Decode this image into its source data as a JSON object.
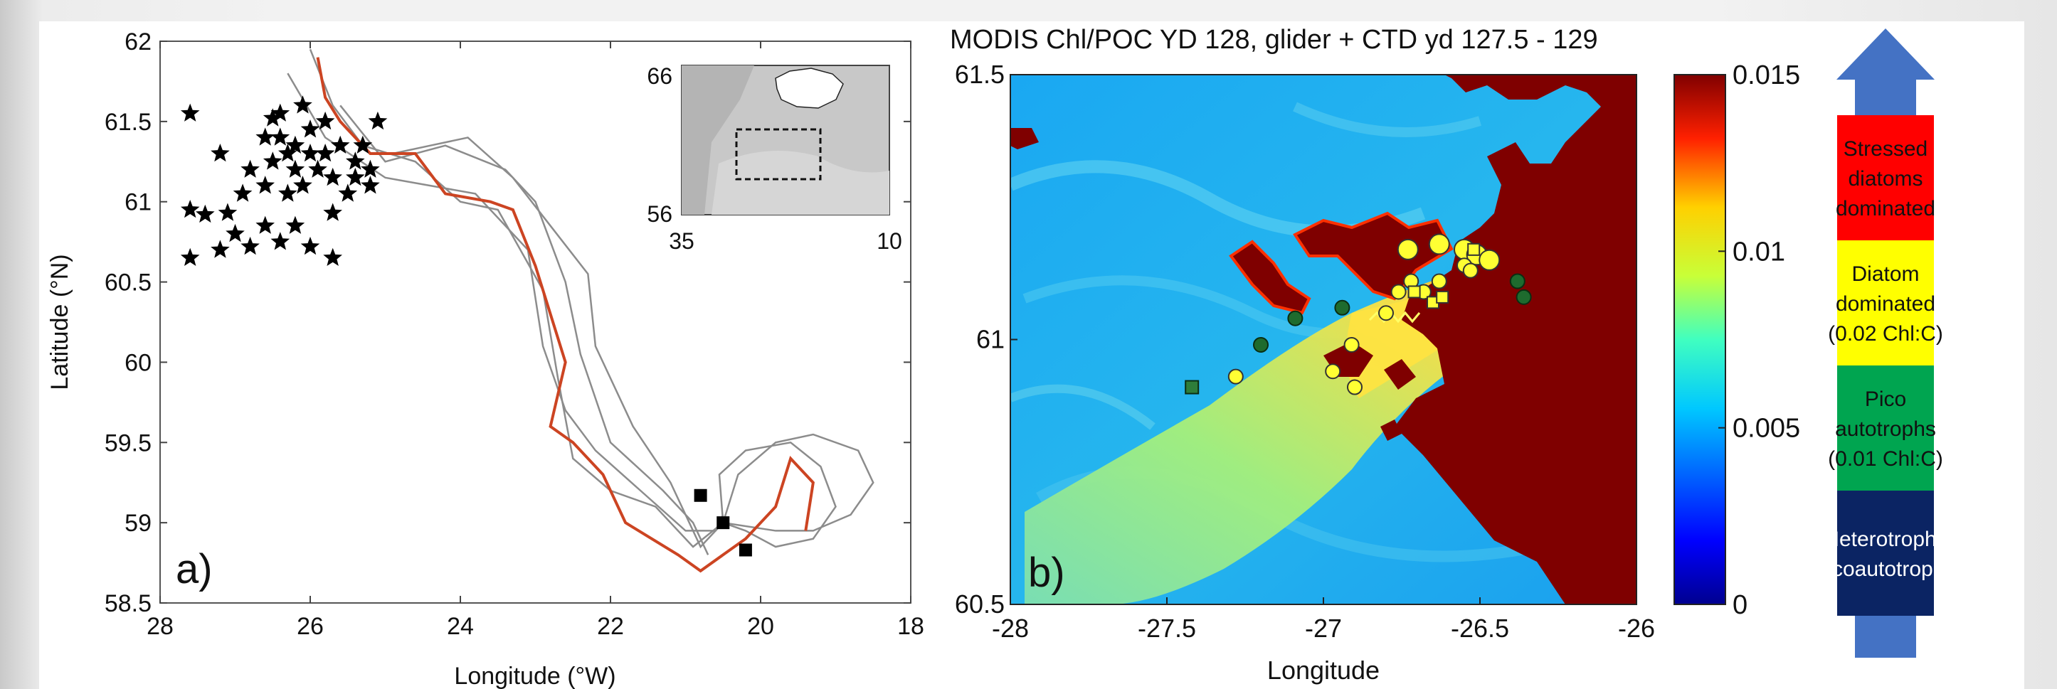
{
  "colors": {
    "track": "#8c8c8c",
    "mean_track": "#cc4422",
    "marker": "#000000",
    "bloom": "#7f0000",
    "ocean": "#22aef0",
    "legend_red": "#ff0000",
    "legend_yellow": "#ffff00",
    "legend_green": "#00a550",
    "legend_navy": "#0b2463",
    "arrow": "#4472c4"
  },
  "chart_data": [
    {
      "type": "line",
      "panel_label": "a)",
      "xlabel": "Longitude (°W)",
      "ylabel": "Latitude (°N)",
      "xlim": [
        28,
        18
      ],
      "ylim": [
        58.5,
        62
      ],
      "x_ticks": [
        "28",
        "26",
        "24",
        "22",
        "20",
        "18"
      ],
      "y_ticks": [
        "58.5",
        "59",
        "59.5",
        "60",
        "60.5",
        "61",
        "61.5",
        "62"
      ],
      "mean_track": [
        [
          25.9,
          61.9
        ],
        [
          25.8,
          61.65
        ],
        [
          25.6,
          61.5
        ],
        [
          25.2,
          61.3
        ],
        [
          24.6,
          61.3
        ],
        [
          24.2,
          61.05
        ],
        [
          23.6,
          61.0
        ],
        [
          23.3,
          60.95
        ],
        [
          23.0,
          60.6
        ],
        [
          22.6,
          60.0
        ],
        [
          22.8,
          59.6
        ],
        [
          22.5,
          59.5
        ],
        [
          22.1,
          59.3
        ],
        [
          21.8,
          59.0
        ],
        [
          21.1,
          58.8
        ],
        [
          20.8,
          58.7
        ],
        [
          20.2,
          58.9
        ],
        [
          19.8,
          59.1
        ],
        [
          19.6,
          59.4
        ],
        [
          19.3,
          59.25
        ],
        [
          19.4,
          58.95
        ]
      ],
      "glider_tracks": [
        [
          [
            26.0,
            61.95
          ],
          [
            25.7,
            61.6
          ],
          [
            25.3,
            61.35
          ],
          [
            24.6,
            61.25
          ],
          [
            24.0,
            61.0
          ],
          [
            23.5,
            60.95
          ],
          [
            22.9,
            60.45
          ],
          [
            22.7,
            59.9
          ],
          [
            22.5,
            59.4
          ],
          [
            22.0,
            59.2
          ],
          [
            21.4,
            59.1
          ],
          [
            20.9,
            58.85
          ],
          [
            20.5,
            59.0
          ]
        ],
        [
          [
            26.3,
            61.8
          ],
          [
            25.8,
            61.4
          ],
          [
            25.0,
            61.15
          ],
          [
            24.4,
            61.1
          ],
          [
            23.8,
            61.05
          ],
          [
            23.1,
            60.7
          ],
          [
            22.9,
            60.1
          ],
          [
            22.6,
            59.7
          ],
          [
            22.2,
            59.45
          ],
          [
            21.6,
            59.2
          ],
          [
            21.0,
            58.95
          ],
          [
            20.6,
            58.95
          ],
          [
            20.5,
            59.05
          ]
        ],
        [
          [
            25.6,
            61.6
          ],
          [
            25.0,
            61.25
          ],
          [
            24.2,
            61.35
          ],
          [
            23.4,
            61.2
          ],
          [
            23.0,
            61.0
          ],
          [
            22.6,
            60.5
          ],
          [
            22.4,
            60.05
          ],
          [
            22.0,
            59.5
          ],
          [
            21.3,
            59.2
          ],
          [
            20.9,
            59.0
          ],
          [
            20.7,
            58.8
          ]
        ],
        [
          [
            24.9,
            61.3
          ],
          [
            24.4,
            61.35
          ],
          [
            23.9,
            61.4
          ],
          [
            23.3,
            61.15
          ],
          [
            22.8,
            60.85
          ],
          [
            22.3,
            60.55
          ],
          [
            22.2,
            60.1
          ],
          [
            21.7,
            59.6
          ],
          [
            21.2,
            59.25
          ],
          [
            20.8,
            58.85
          ],
          [
            20.5,
            59.0
          ]
        ],
        [
          [
            20.5,
            59.0
          ],
          [
            20.55,
            59.3
          ],
          [
            20.2,
            59.45
          ],
          [
            19.6,
            59.5
          ],
          [
            19.2,
            59.35
          ],
          [
            19.0,
            59.1
          ],
          [
            19.3,
            58.9
          ],
          [
            19.8,
            58.85
          ],
          [
            20.2,
            58.95
          ],
          [
            20.5,
            59.0
          ]
        ],
        [
          [
            20.5,
            59.0
          ],
          [
            20.3,
            59.3
          ],
          [
            19.8,
            59.5
          ],
          [
            19.3,
            59.55
          ],
          [
            18.7,
            59.45
          ],
          [
            18.5,
            59.25
          ],
          [
            18.8,
            59.05
          ],
          [
            19.3,
            58.95
          ],
          [
            19.8,
            58.95
          ],
          [
            20.5,
            59.0
          ]
        ]
      ],
      "star_points": [
        [
          27.6,
          61.55
        ],
        [
          27.6,
          60.95
        ],
        [
          27.4,
          60.92
        ],
        [
          27.1,
          60.93
        ],
        [
          27.2,
          61.3
        ],
        [
          27.0,
          60.8
        ],
        [
          26.8,
          60.72
        ],
        [
          27.2,
          60.7
        ],
        [
          27.6,
          60.65
        ],
        [
          26.6,
          60.85
        ],
        [
          26.4,
          60.75
        ],
        [
          26.2,
          60.85
        ],
        [
          26.0,
          60.72
        ],
        [
          25.7,
          60.93
        ],
        [
          25.7,
          60.65
        ],
        [
          26.5,
          61.52
        ],
        [
          26.4,
          61.4
        ],
        [
          26.3,
          61.3
        ],
        [
          26.1,
          61.6
        ],
        [
          26.0,
          61.45
        ],
        [
          25.8,
          61.5
        ],
        [
          25.6,
          61.35
        ],
        [
          25.4,
          61.25
        ],
        [
          25.2,
          61.1
        ],
        [
          25.4,
          61.15
        ],
        [
          25.5,
          61.05
        ],
        [
          25.7,
          61.15
        ],
        [
          25.9,
          61.2
        ],
        [
          26.1,
          61.1
        ],
        [
          26.3,
          61.05
        ],
        [
          26.6,
          61.1
        ],
        [
          26.8,
          61.2
        ],
        [
          26.9,
          61.05
        ],
        [
          26.5,
          61.25
        ],
        [
          26.6,
          61.4
        ],
        [
          26.2,
          61.35
        ],
        [
          26.0,
          61.3
        ],
        [
          25.8,
          61.3
        ],
        [
          26.4,
          61.55
        ],
        [
          26.2,
          61.2
        ],
        [
          25.1,
          61.5
        ],
        [
          25.3,
          61.35
        ],
        [
          25.2,
          61.2
        ]
      ],
      "square_points": [
        [
          20.8,
          59.17
        ],
        [
          20.5,
          59.0
        ],
        [
          20.2,
          58.83
        ]
      ]
    },
    {
      "type": "table",
      "inset_x_ticks": [
        "35",
        "10"
      ],
      "inset_y_ticks": [
        "66",
        "56"
      ]
    },
    {
      "type": "heatmap",
      "panel_label": "b)",
      "title": "MODIS Chl/POC YD 128, glider + CTD yd 127.5 - 129",
      "xlabel": "Longitude",
      "xlim": [
        -28,
        -26
      ],
      "ylim": [
        60.5,
        61.5
      ],
      "x_ticks": [
        "-28",
        "-27.5",
        "-27",
        "-26.5",
        "-26"
      ],
      "y_ticks": [
        "60.5",
        "61",
        "61.5"
      ],
      "colorbar_range": [
        0,
        0.015
      ],
      "colorbar_ticks": [
        "0",
        "0.005",
        "0.01",
        "0.015"
      ],
      "yellow_circles": [
        [
          -26.73,
          61.17
        ],
        [
          -26.63,
          61.18
        ],
        [
          -26.55,
          61.17
        ],
        [
          -26.51,
          61.16
        ],
        [
          -26.47,
          61.15
        ],
        [
          -26.72,
          61.11
        ],
        [
          -26.76,
          61.09
        ],
        [
          -26.68,
          61.09
        ],
        [
          -26.63,
          61.11
        ],
        [
          -26.55,
          61.14
        ],
        [
          -26.53,
          61.13
        ],
        [
          -26.8,
          61.05
        ],
        [
          -26.91,
          60.99
        ],
        [
          -26.97,
          60.94
        ],
        [
          -26.9,
          60.91
        ],
        [
          -27.28,
          60.93
        ]
      ],
      "yellow_squares": [
        [
          -26.52,
          61.17
        ],
        [
          -26.71,
          61.09
        ],
        [
          -26.65,
          61.07
        ],
        [
          -26.62,
          61.08
        ]
      ],
      "green_circles": [
        [
          -27.2,
          60.99
        ],
        [
          -27.09,
          61.04
        ],
        [
          -26.94,
          61.06
        ],
        [
          -26.38,
          61.11
        ],
        [
          -26.36,
          61.08
        ]
      ],
      "green_squares": [
        [
          -27.42,
          60.91
        ]
      ]
    },
    {
      "type": "table",
      "categories": [
        {
          "label": "Stressed diatoms dominated"
        },
        {
          "label": "Diatom dominated (0.02 Chl:C)"
        },
        {
          "label": "Pico autotrophs (0.01 Chl:C)"
        },
        {
          "label": "Heterotrophs picoautotrophs"
        }
      ]
    }
  ],
  "legend_lines": [
    [
      "Stressed",
      "diatoms",
      "dominated"
    ],
    [
      "Diatom",
      "dominated",
      "(0.02 Chl:C)"
    ],
    [
      "Pico",
      "autotrophs",
      "(0.01 Chl:C)"
    ],
    [
      "Heterotrophs",
      "picoautotrophs"
    ]
  ]
}
